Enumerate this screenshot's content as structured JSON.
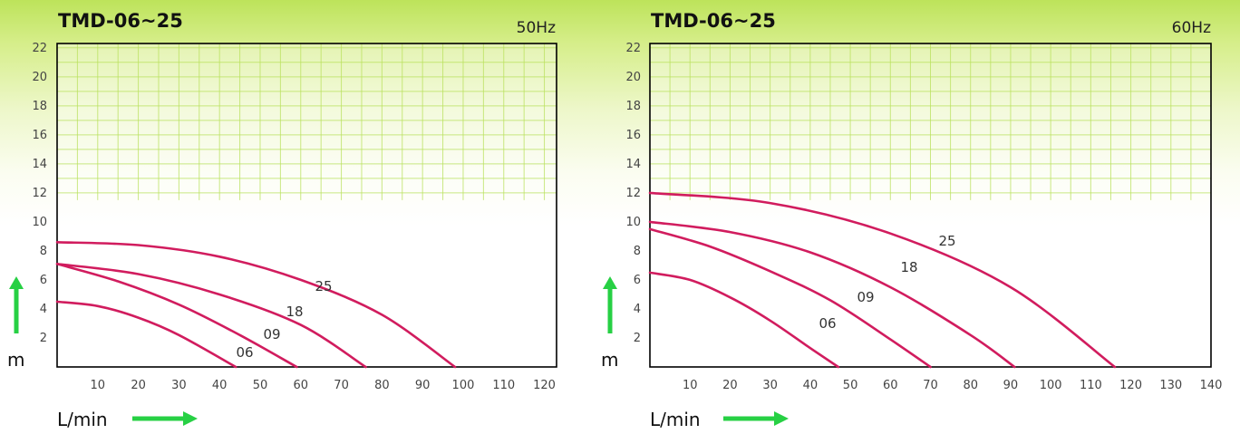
{
  "chart_data": [
    {
      "type": "line",
      "title": "TMD-06~25",
      "subtitle": "50Hz",
      "xlabel": "L/min",
      "ylabel": "m",
      "x_ticks": [
        10,
        20,
        30,
        40,
        50,
        60,
        70,
        80,
        90,
        100,
        110,
        120
      ],
      "y_ticks": [
        2,
        4,
        6,
        8,
        10,
        12,
        14,
        16,
        18,
        20,
        22
      ],
      "xlim": [
        0,
        123
      ],
      "ylim": [
        0,
        22.3
      ],
      "grid": true,
      "series": [
        {
          "name": "25",
          "x": [
            0,
            20,
            40,
            60,
            80,
            98
          ],
          "y": [
            8.6,
            8.4,
            7.6,
            6.0,
            3.6,
            0
          ]
        },
        {
          "name": "18",
          "x": [
            0,
            20,
            40,
            60,
            76
          ],
          "y": [
            7.1,
            6.4,
            5.0,
            2.9,
            0
          ]
        },
        {
          "name": "09",
          "x": [
            0,
            15,
            30,
            45,
            59
          ],
          "y": [
            7.1,
            5.9,
            4.3,
            2.2,
            0
          ]
        },
        {
          "name": "06",
          "x": [
            0,
            10,
            20,
            30,
            44
          ],
          "y": [
            4.5,
            4.2,
            3.4,
            2.2,
            0
          ]
        }
      ]
    },
    {
      "type": "line",
      "title": "TMD-06~25",
      "subtitle": "60Hz",
      "xlabel": "L/min",
      "ylabel": "m",
      "x_ticks": [
        10,
        20,
        30,
        40,
        50,
        60,
        70,
        80,
        90,
        100,
        110,
        120,
        130,
        140
      ],
      "y_ticks": [
        2,
        4,
        6,
        8,
        10,
        12,
        14,
        16,
        18,
        20,
        22
      ],
      "xlim": [
        0,
        140
      ],
      "ylim": [
        0,
        22.3
      ],
      "grid": true,
      "series": [
        {
          "name": "25",
          "x": [
            0,
            30,
            60,
            90,
            116
          ],
          "y": [
            12.0,
            11.3,
            9.2,
            5.5,
            0
          ]
        },
        {
          "name": "18",
          "x": [
            0,
            20,
            40,
            60,
            80,
            91
          ],
          "y": [
            10.0,
            9.3,
            7.9,
            5.5,
            2.2,
            0
          ]
        },
        {
          "name": "09",
          "x": [
            0,
            15,
            30,
            45,
            60,
            70
          ],
          "y": [
            9.5,
            8.3,
            6.6,
            4.6,
            1.9,
            0
          ]
        },
        {
          "name": "06",
          "x": [
            0,
            10,
            20,
            30,
            40,
            47
          ],
          "y": [
            6.5,
            6.0,
            4.8,
            3.2,
            1.3,
            0
          ]
        }
      ]
    }
  ],
  "colors": {
    "curve": "#d11c5e",
    "arrow": "#27d044",
    "grid": "#b9e15c",
    "frame": "#000000",
    "background_top": "#bde35a"
  },
  "icons": {
    "up_arrow": "green-up-arrow-icon",
    "right_arrow": "green-right-arrow-icon"
  }
}
